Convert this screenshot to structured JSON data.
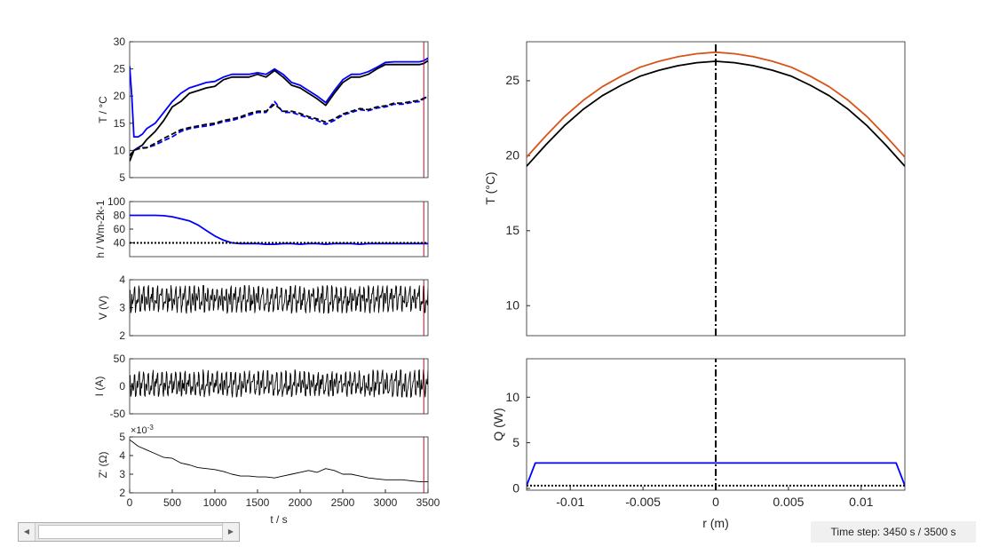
{
  "chart_data": [
    {
      "id": "temperature_time",
      "type": "line",
      "ylabel": "T / °C",
      "xlim": [
        0,
        3500
      ],
      "ylim": [
        5,
        30
      ],
      "yticks": [
        "5",
        "10",
        "15",
        "20",
        "25",
        "30"
      ],
      "series": [
        {
          "style": "solid",
          "color": "#0000ff",
          "x": [
            0,
            25,
            50,
            100,
            150,
            200,
            300,
            400,
            500,
            600,
            700,
            800,
            900,
            1000,
            1100,
            1200,
            1300,
            1400,
            1500,
            1600,
            1700,
            1800,
            1900,
            2000,
            2100,
            2200,
            2300,
            2400,
            2500,
            2600,
            2700,
            2800,
            2900,
            3000,
            3100,
            3200,
            3300,
            3400,
            3450,
            3500
          ],
          "y": [
            25.5,
            20,
            12.5,
            12.5,
            13,
            14,
            15,
            17,
            19,
            20.5,
            21.5,
            22,
            22.5,
            22.7,
            23.5,
            24,
            24,
            24,
            24.3,
            24,
            25,
            24,
            22.5,
            22,
            21,
            20,
            18.8,
            21,
            23,
            24,
            24,
            24.5,
            25.3,
            26.2,
            26.3,
            26.3,
            26.3,
            26.3,
            26.5,
            27
          ]
        },
        {
          "style": "solid",
          "color": "#000000",
          "x": [
            0,
            50,
            100,
            150,
            200,
            300,
            400,
            500,
            600,
            700,
            800,
            900,
            1000,
            1100,
            1200,
            1300,
            1400,
            1500,
            1600,
            1700,
            1800,
            1900,
            2000,
            2100,
            2200,
            2300,
            2400,
            2500,
            2600,
            2700,
            2800,
            2900,
            3000,
            3100,
            3200,
            3300,
            3400,
            3450,
            3500
          ],
          "y": [
            8,
            10,
            10.5,
            11,
            12,
            13.5,
            15.5,
            18,
            19,
            20.5,
            21,
            21.5,
            21.8,
            23,
            23.5,
            23.5,
            23.5,
            24,
            23.5,
            24.7,
            23.5,
            22,
            21.5,
            20.5,
            19.5,
            18.3,
            20.5,
            22.5,
            23.5,
            23.5,
            24,
            25,
            25.8,
            25.8,
            25.8,
            25.8,
            25.8,
            26,
            26.5
          ]
        },
        {
          "style": "dashed",
          "color": "#0000ff",
          "x": [
            0,
            50,
            100,
            200,
            300,
            400,
            500,
            600,
            700,
            800,
            900,
            1000,
            1100,
            1200,
            1300,
            1400,
            1500,
            1600,
            1700,
            1800,
            1900,
            2000,
            2100,
            2200,
            2300,
            2400,
            2500,
            2600,
            2700,
            2800,
            2900,
            3000,
            3100,
            3200,
            3300,
            3400,
            3450,
            3500
          ],
          "y": [
            9,
            10,
            10.5,
            10.5,
            11,
            11.8,
            12.5,
            13.5,
            14,
            14.3,
            14.5,
            14.8,
            15.3,
            15.5,
            16,
            16.5,
            17,
            17,
            19,
            17,
            17,
            16.5,
            16,
            15.5,
            14.8,
            15.5,
            16.5,
            17,
            17.5,
            17.3,
            17.8,
            18,
            18.5,
            18.5,
            18.8,
            19,
            19.5,
            20
          ]
        },
        {
          "style": "dashed",
          "color": "#000000",
          "x": [
            0,
            50,
            100,
            200,
            300,
            400,
            500,
            600,
            700,
            800,
            900,
            1000,
            1100,
            1200,
            1300,
            1400,
            1500,
            1600,
            1700,
            1800,
            1900,
            2000,
            2100,
            2200,
            2300,
            2400,
            2500,
            2600,
            2700,
            2800,
            2900,
            3000,
            3100,
            3200,
            3300,
            3400,
            3450,
            3500
          ],
          "y": [
            9,
            10,
            10.3,
            10.5,
            11.3,
            12.2,
            13,
            13.8,
            14.2,
            14.5,
            14.8,
            15,
            15.5,
            15.8,
            16.2,
            16.8,
            17.2,
            17.2,
            18.5,
            17.2,
            17.2,
            16.8,
            16.2,
            15.8,
            15.2,
            15.8,
            16.7,
            17.2,
            17.7,
            17.5,
            18,
            18.2,
            18.7,
            18.7,
            19,
            19.2,
            19.6,
            20
          ]
        }
      ]
    },
    {
      "id": "heat_transfer_time",
      "type": "line",
      "ylabel": "h / Wm-2k-1",
      "xlim": [
        0,
        3500
      ],
      "ylim": [
        20,
        100
      ],
      "yticks": [
        "100",
        "80",
        "60",
        "40"
      ],
      "series": [
        {
          "style": "solid",
          "color": "#0000ff",
          "x": [
            0,
            100,
            200,
            300,
            400,
            500,
            600,
            700,
            800,
            900,
            1000,
            1100,
            1200,
            1300,
            1400,
            1500,
            1600,
            1700,
            1800,
            1900,
            2000,
            2100,
            2200,
            2300,
            2400,
            2500,
            2600,
            2700,
            2800,
            2900,
            3000,
            3100,
            3200,
            3300,
            3400,
            3500
          ],
          "y": [
            80,
            80,
            80,
            80,
            79.5,
            78,
            75,
            72,
            66,
            58,
            50,
            44,
            40,
            39,
            39,
            39,
            38,
            38,
            39,
            39,
            38,
            39,
            39,
            38,
            39,
            39,
            39,
            38,
            39,
            39,
            39,
            39,
            39,
            39,
            39,
            39
          ]
        },
        {
          "style": "dotted",
          "color": "#000000",
          "x": [
            0,
            3500
          ],
          "y": [
            40,
            40
          ]
        }
      ]
    },
    {
      "id": "voltage_time",
      "type": "line",
      "ylabel": "V (V)",
      "xlim": [
        0,
        3500
      ],
      "ylim": [
        2,
        4
      ],
      "yticks": [
        "4",
        "3",
        "2"
      ],
      "series": [
        {
          "style": "solid",
          "color": "#000000",
          "x": [
            0,
            3500
          ],
          "y": [
            3.3,
            3.3
          ],
          "note": "oscillating between 2.8 and 3.8"
        }
      ]
    },
    {
      "id": "current_time",
      "type": "line",
      "ylabel": "I (A)",
      "xlim": [
        0,
        3500
      ],
      "ylim": [
        -50,
        50
      ],
      "yticks": [
        "50",
        "0",
        "-50"
      ],
      "series": [
        {
          "style": "solid",
          "color": "#000000",
          "x": [
            0,
            3500
          ],
          "y": [
            0,
            0
          ],
          "note": "oscillating between -20 and 30"
        }
      ]
    },
    {
      "id": "impedance_time",
      "type": "line",
      "ylabel": "Z' (Ω)",
      "xlabel": "t / s",
      "exponent": "×10",
      "exponent_power": "-3",
      "xlim": [
        0,
        3500
      ],
      "ylim": [
        2,
        5
      ],
      "yticks": [
        "5",
        "4",
        "3",
        "2"
      ],
      "xticks": [
        "0",
        "500",
        "1000",
        "1500",
        "2000",
        "2500",
        "3000",
        "3500"
      ],
      "series": [
        {
          "style": "solid",
          "color": "#000000",
          "x": [
            0,
            100,
            200,
            300,
            400,
            500,
            600,
            700,
            800,
            900,
            1000,
            1100,
            1200,
            1300,
            1400,
            1500,
            1600,
            1700,
            1800,
            1900,
            2000,
            2100,
            2200,
            2300,
            2400,
            2500,
            2600,
            2700,
            2800,
            2900,
            3000,
            3100,
            3200,
            3300,
            3400,
            3500
          ],
          "y": [
            4.85,
            4.5,
            4.3,
            4.1,
            3.9,
            3.85,
            3.6,
            3.5,
            3.35,
            3.3,
            3.25,
            3.15,
            3.0,
            2.9,
            2.9,
            2.85,
            2.85,
            2.8,
            2.9,
            3.0,
            3.1,
            3.2,
            3.1,
            3.3,
            3.2,
            3.0,
            3.0,
            2.9,
            2.8,
            2.75,
            2.7,
            2.7,
            2.7,
            2.65,
            2.6,
            2.6
          ]
        }
      ]
    },
    {
      "id": "radial_temperature",
      "type": "line",
      "ylabel": "T (°C)",
      "xlim": [
        -0.013,
        0.013
      ],
      "ylim": [
        8,
        27.6
      ],
      "yticks": [
        "10",
        "15",
        "20",
        "25"
      ],
      "series": [
        {
          "style": "solid",
          "color": "#d95319",
          "x": [
            -0.013,
            -0.0117,
            -0.0104,
            -0.0091,
            -0.0078,
            -0.0065,
            -0.0052,
            -0.0039,
            -0.0026,
            -0.0013,
            0,
            0.0013,
            0.0026,
            0.0039,
            0.0052,
            0.0065,
            0.0078,
            0.0091,
            0.0104,
            0.0117,
            0.013
          ],
          "y": [
            19.9,
            21.3,
            22.6,
            23.7,
            24.6,
            25.3,
            25.9,
            26.3,
            26.6,
            26.8,
            26.9,
            26.8,
            26.6,
            26.3,
            25.9,
            25.3,
            24.6,
            23.7,
            22.6,
            21.3,
            19.9
          ]
        },
        {
          "style": "solid",
          "color": "#000000",
          "x": [
            -0.013,
            -0.0117,
            -0.0104,
            -0.0091,
            -0.0078,
            -0.0065,
            -0.0052,
            -0.0039,
            -0.0026,
            -0.0013,
            0,
            0.0013,
            0.0026,
            0.0039,
            0.0052,
            0.0065,
            0.0078,
            0.0091,
            0.0104,
            0.0117,
            0.013
          ],
          "y": [
            19.3,
            20.7,
            22.0,
            23.1,
            24.0,
            24.7,
            25.3,
            25.7,
            26.0,
            26.2,
            26.3,
            26.2,
            26.0,
            25.7,
            25.3,
            24.7,
            24.0,
            23.1,
            22.0,
            20.7,
            19.3
          ]
        },
        {
          "style": "dashdot",
          "color": "#000000",
          "x": [
            0,
            0
          ],
          "y": [
            8,
            27.6
          ]
        }
      ]
    },
    {
      "id": "radial_heat",
      "type": "line",
      "ylabel": "Q (W)",
      "xlabel": "r (m)",
      "xlim": [
        -0.013,
        0.013
      ],
      "ylim": [
        -0.5,
        14
      ],
      "yticks": [
        "0",
        "5",
        "10"
      ],
      "xticks": [
        "-0.01",
        "-0.005",
        "0",
        "0.005",
        "0.01"
      ],
      "series": [
        {
          "style": "solid",
          "color": "#0000ff",
          "x": [
            -0.013,
            -0.0124,
            0.0124,
            0.013
          ],
          "y": [
            0,
            2.5,
            2.5,
            0
          ]
        },
        {
          "style": "dotted",
          "color": "#000000",
          "x": [
            -0.013,
            0.013
          ],
          "y": [
            0,
            0
          ]
        },
        {
          "style": "dashdot",
          "color": "#000000",
          "x": [
            0,
            0
          ],
          "y": [
            -0.5,
            14
          ]
        }
      ]
    }
  ],
  "controls": {
    "scroll_left": "◀",
    "scroll_right": "▶",
    "time_step_label": "Time step: 3450 s / 3500 s"
  }
}
